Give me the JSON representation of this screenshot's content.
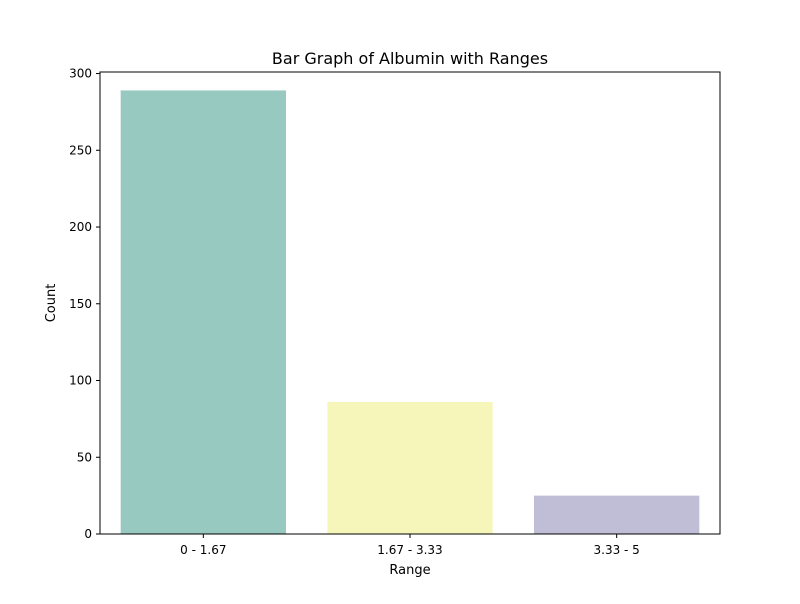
{
  "chart_data": {
    "type": "bar",
    "title": "Bar Graph of Albumin with Ranges",
    "xlabel": "Range",
    "ylabel": "Count",
    "categories": [
      "0 - 1.67",
      "1.67 - 3.33",
      "3.33 - 5"
    ],
    "values": [
      289,
      86,
      25
    ],
    "colors": [
      "#98c9c0",
      "#f6f6bb",
      "#c0bdd6"
    ],
    "ylim": [
      0,
      301
    ],
    "yticks": [
      0,
      50,
      100,
      150,
      200,
      250,
      300
    ],
    "grid": false,
    "legend": "none"
  }
}
